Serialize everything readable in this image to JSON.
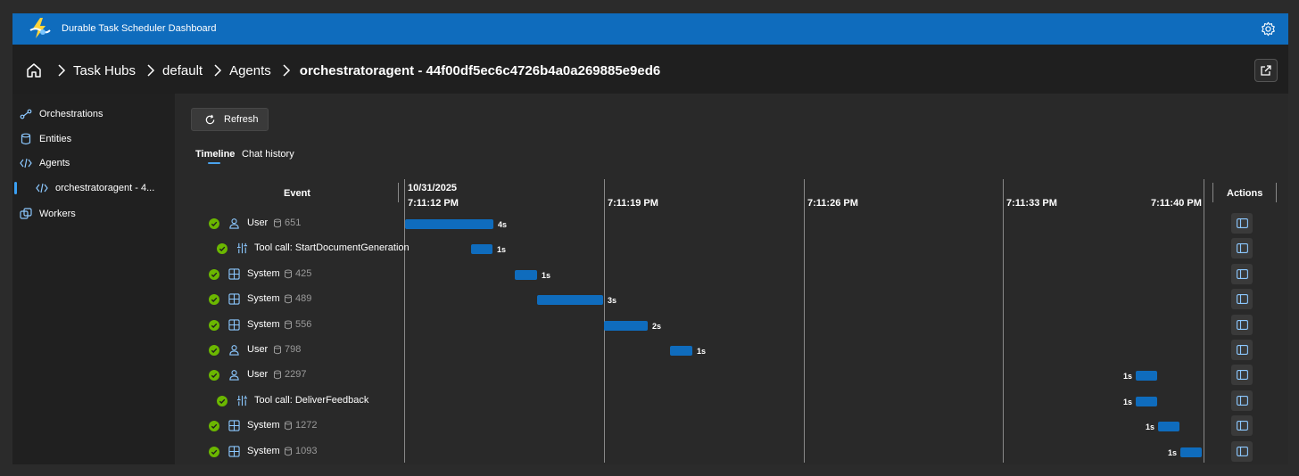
{
  "app": {
    "title": "Durable Task Scheduler Dashboard"
  },
  "breadcrumb": [
    "Task Hubs",
    "default",
    "Agents",
    "orchestratoragent - 44f00df5ec6c4726b4a0a269885e9ed6"
  ],
  "sidebar": {
    "items": [
      {
        "label": "Orchestrations",
        "icon": "flow-icon"
      },
      {
        "label": "Entities",
        "icon": "database-icon"
      },
      {
        "label": "Agents",
        "icon": "code-icon"
      },
      {
        "label": "orchestratoragent - 4...",
        "icon": "code-icon",
        "selected": true
      },
      {
        "label": "Workers",
        "icon": "workers-icon"
      }
    ]
  },
  "toolbar": {
    "refresh_label": "Refresh"
  },
  "tabs": {
    "timeline": "Timeline",
    "chat_history": "Chat history"
  },
  "table": {
    "event_header": "Event",
    "actions_header": "Actions",
    "date": "10/31/2025",
    "ticks": [
      "7:11:12 PM",
      "7:11:19 PM",
      "7:11:26 PM",
      "7:11:33 PM",
      "7:11:40 PM"
    ]
  },
  "colors": {
    "accent": "#0f6cbd",
    "success": "#6bb700"
  },
  "rows": [
    {
      "label": "User",
      "kind": "user",
      "tokens": "651",
      "duration": "4s"
    },
    {
      "label": "Tool call: StartDocumentGeneration",
      "kind": "tool",
      "tokens": "",
      "duration": "1s"
    },
    {
      "label": "System",
      "kind": "system",
      "tokens": "425",
      "duration": "1s"
    },
    {
      "label": "System",
      "kind": "system",
      "tokens": "489",
      "duration": "3s"
    },
    {
      "label": "System",
      "kind": "system",
      "tokens": "556",
      "duration": "2s"
    },
    {
      "label": "User",
      "kind": "user",
      "tokens": "798",
      "duration": "1s"
    },
    {
      "label": "User",
      "kind": "user",
      "tokens": "2297",
      "duration": "1s"
    },
    {
      "label": "Tool call: DeliverFeedback",
      "kind": "tool",
      "tokens": "",
      "duration": "1s"
    },
    {
      "label": "System",
      "kind": "system",
      "tokens": "1272",
      "duration": "1s"
    },
    {
      "label": "System",
      "kind": "system",
      "tokens": "1093",
      "duration": "1s"
    }
  ]
}
